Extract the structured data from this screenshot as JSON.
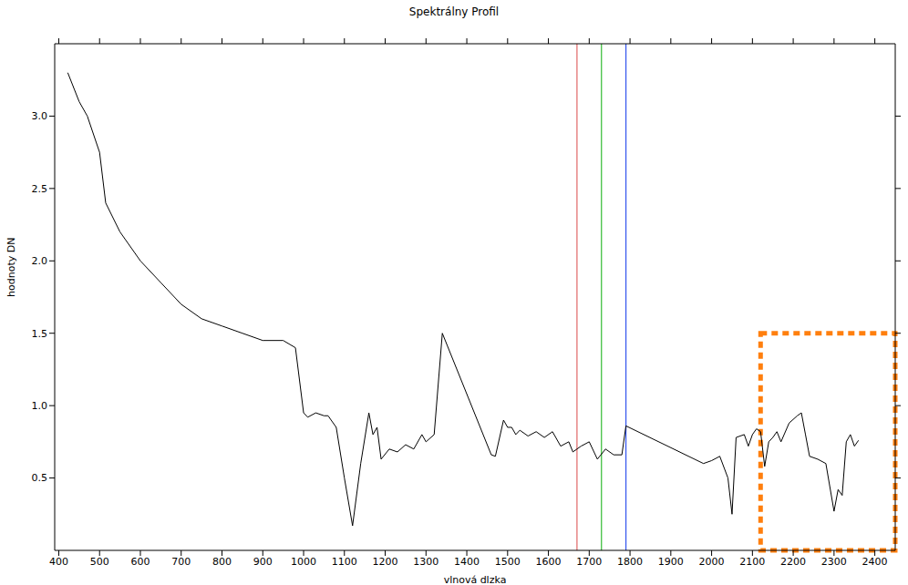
{
  "chart_data": {
    "type": "line",
    "title": "Spektrálny Profil",
    "x_label": "vlnová dlzka",
    "y_label": "hodnoty DN",
    "x": [
      422,
      450,
      470,
      500,
      515,
      550,
      600,
      650,
      700,
      750,
      800,
      850,
      900,
      950,
      980,
      1000,
      1010,
      1030,
      1050,
      1060,
      1080,
      1100,
      1120,
      1140,
      1160,
      1170,
      1180,
      1190,
      1210,
      1230,
      1250,
      1270,
      1290,
      1300,
      1320,
      1340,
      1460,
      1470,
      1490,
      1500,
      1510,
      1520,
      1530,
      1550,
      1570,
      1590,
      1610,
      1630,
      1650,
      1660,
      1680,
      1700,
      1720,
      1740,
      1760,
      1780,
      1790,
      1980,
      2000,
      2020,
      2040,
      2050,
      2060,
      2080,
      2090,
      2100,
      2110,
      2120,
      2130,
      2140,
      2150,
      2160,
      2170,
      2190,
      2210,
      2220,
      2230,
      2240,
      2260,
      2280,
      2300,
      2310,
      2320,
      2330,
      2340,
      2350,
      2360
    ],
    "values": [
      3.3,
      3.1,
      3.0,
      2.75,
      2.4,
      2.2,
      2.0,
      1.85,
      1.7,
      1.6,
      1.55,
      1.5,
      1.45,
      1.45,
      1.4,
      0.95,
      0.92,
      0.95,
      0.93,
      0.93,
      0.85,
      0.5,
      0.17,
      0.6,
      0.95,
      0.8,
      0.85,
      0.63,
      0.7,
      0.68,
      0.73,
      0.7,
      0.8,
      0.75,
      0.8,
      1.5,
      0.66,
      0.65,
      0.9,
      0.85,
      0.85,
      0.8,
      0.83,
      0.79,
      0.82,
      0.78,
      0.82,
      0.72,
      0.75,
      0.68,
      0.72,
      0.75,
      0.63,
      0.7,
      0.66,
      0.66,
      0.86,
      0.6,
      0.62,
      0.65,
      0.5,
      0.25,
      0.78,
      0.8,
      0.72,
      0.8,
      0.84,
      0.82,
      0.58,
      0.75,
      0.78,
      0.82,
      0.75,
      0.88,
      0.93,
      0.95,
      0.8,
      0.65,
      0.63,
      0.6,
      0.27,
      0.42,
      0.38,
      0.75,
      0.8,
      0.72,
      0.76
    ],
    "color": "#000000",
    "xlim": [
      390,
      2450
    ],
    "xticks": [
      400,
      500,
      600,
      700,
      800,
      900,
      1000,
      1100,
      1200,
      1300,
      1400,
      1500,
      1600,
      1700,
      1800,
      1900,
      2000,
      2100,
      2200,
      2300,
      2400
    ],
    "ylim": [
      0,
      3.5
    ],
    "yticks": [
      0.5,
      {
        "value": 1,
        "label": "1.0"
      },
      1.5,
      {
        "value": 2,
        "label": "2.0"
      },
      2.5,
      {
        "value": 3,
        "label": "3.0"
      }
    ],
    "reference_lines": [
      {
        "x": 1670,
        "color": "#e06666"
      },
      {
        "x": 1730,
        "color": "#33bb33"
      },
      {
        "x": 1790,
        "color": "#3355ee"
      }
    ],
    "highlight": {
      "xlim": [
        2120,
        2450
      ],
      "ylim": [
        0,
        1.5
      ],
      "color": "#ff7f0e"
    },
    "grid": false
  }
}
